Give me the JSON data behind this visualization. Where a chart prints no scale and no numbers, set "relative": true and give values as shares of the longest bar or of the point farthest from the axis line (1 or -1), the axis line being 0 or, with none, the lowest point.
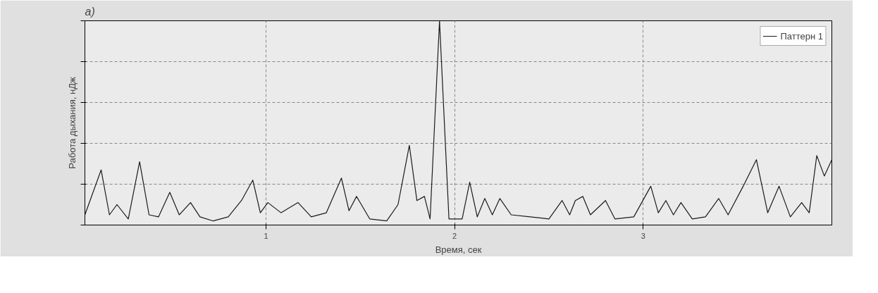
{
  "chart_data": {
    "type": "line",
    "title": "а)",
    "xlabel": "Время, сек",
    "ylabel": "Работа дыхания, нДж",
    "relative": true,
    "xlim": [
      0.04,
      4.0
    ],
    "xticks": [
      1,
      2,
      3
    ],
    "tick_labels": "x",
    "grid": true,
    "legend": "top right",
    "series": [
      {
        "name": "Паттерн 1",
        "color": "#1a1a1a",
        "x": [
          0.04,
          0.126,
          0.17,
          0.21,
          0.27,
          0.33,
          0.38,
          0.43,
          0.49,
          0.54,
          0.6,
          0.65,
          0.72,
          0.8,
          0.87,
          0.93,
          0.97,
          1.01,
          1.08,
          1.17,
          1.24,
          1.32,
          1.4,
          1.44,
          1.48,
          1.55,
          1.64,
          1.7,
          1.76,
          1.8,
          1.84,
          1.87,
          1.92,
          1.97,
          2.04,
          2.08,
          2.12,
          2.16,
          2.2,
          2.24,
          2.3,
          2.4,
          2.5,
          2.57,
          2.61,
          2.64,
          2.68,
          2.72,
          2.8,
          2.85,
          2.95,
          3.04,
          3.08,
          3.12,
          3.16,
          3.2,
          3.26,
          3.33,
          3.4,
          3.45,
          3.53,
          3.6,
          3.66,
          3.72,
          3.78,
          3.84,
          3.88,
          3.92,
          3.96,
          4.0
        ],
        "values": [
          0.05,
          0.27,
          0.05,
          0.1,
          0.03,
          0.31,
          0.05,
          0.04,
          0.16,
          0.05,
          0.11,
          0.04,
          0.02,
          0.04,
          0.12,
          0.22,
          0.06,
          0.11,
          0.06,
          0.11,
          0.04,
          0.06,
          0.23,
          0.07,
          0.14,
          0.03,
          0.02,
          0.1,
          0.39,
          0.12,
          0.14,
          0.03,
          1.0,
          0.03,
          0.03,
          0.21,
          0.04,
          0.13,
          0.05,
          0.13,
          0.05,
          0.04,
          0.03,
          0.12,
          0.05,
          0.12,
          0.14,
          0.05,
          0.12,
          0.03,
          0.04,
          0.19,
          0.06,
          0.12,
          0.05,
          0.11,
          0.03,
          0.04,
          0.13,
          0.05,
          0.19,
          0.32,
          0.06,
          0.19,
          0.04,
          0.11,
          0.06,
          0.34,
          0.24,
          0.32
        ]
      }
    ]
  }
}
